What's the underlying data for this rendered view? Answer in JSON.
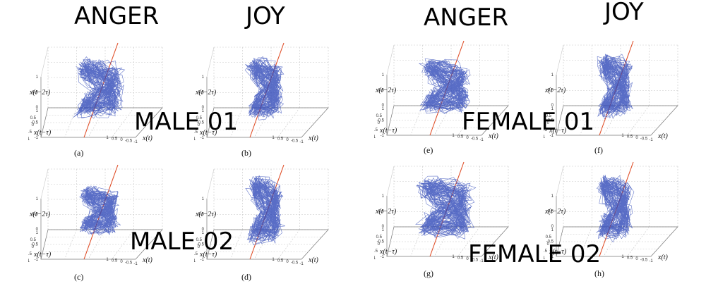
{
  "headers": {
    "anger_left": "ANGER",
    "joy_left": "JOY",
    "anger_right": "ANGER",
    "joy_right": "JOY"
  },
  "speaker_labels": {
    "male01": "MALE 01",
    "male02": "MALE 02",
    "female01": "FEMALE 01",
    "female02": "FEMALE 02"
  },
  "axis_labels": {
    "z": "x(t−2τ)",
    "y": "x(t−τ)",
    "x": "x(t)"
  },
  "z_ticks": [
    "1",
    "0.5",
    "0",
    "-0.5",
    "-1"
  ],
  "floor_ticks": [
    "1",
    "0.5",
    "0",
    "-0.5",
    "-1"
  ],
  "colors": {
    "trajectory": "#2f48b8",
    "diagonal": "#e0502a",
    "grid": "#c8c8c8",
    "axis": "#777777"
  },
  "chart_data": [
    {
      "type": "scatter",
      "subtitle": "(a)",
      "emotion": "ANGER",
      "speaker": "MALE 01",
      "spread": [
        0.42,
        0.38,
        0.75
      ],
      "z_ticks": [
        1,
        0.5,
        0,
        -0.5,
        -1
      ],
      "zlim": [
        -1,
        1
      ]
    },
    {
      "type": "scatter",
      "subtitle": "(b)",
      "emotion": "JOY",
      "speaker": "MALE 01",
      "spread": [
        0.3,
        0.3,
        0.8
      ],
      "z_ticks": [
        1,
        0.5,
        0,
        -0.5,
        -1
      ],
      "zlim": [
        -1,
        1
      ]
    },
    {
      "type": "scatter",
      "subtitle": "(c)",
      "emotion": "ANGER",
      "speaker": "MALE 02",
      "spread": [
        0.35,
        0.3,
        0.6
      ],
      "z_ticks": [
        1,
        0.5,
        0,
        -0.5,
        -1
      ],
      "zlim": [
        -1,
        1
      ]
    },
    {
      "type": "scatter",
      "subtitle": "(d)",
      "emotion": "JOY",
      "speaker": "MALE 02",
      "spread": [
        0.3,
        0.25,
        0.9
      ],
      "z_ticks": [
        1,
        0.5,
        0,
        -0.5,
        -1
      ],
      "zlim": [
        -1,
        1
      ]
    },
    {
      "type": "scatter",
      "subtitle": "(e)",
      "emotion": "ANGER",
      "speaker": "FEMALE 01",
      "spread": [
        0.45,
        0.3,
        0.7
      ],
      "z_ticks": [
        1,
        0.5,
        0,
        -0.5,
        -1
      ],
      "zlim": [
        -1,
        1
      ]
    },
    {
      "type": "scatter",
      "subtitle": "(f)",
      "emotion": "JOY",
      "speaker": "FEMALE 01",
      "spread": [
        0.3,
        0.28,
        0.85
      ],
      "z_ticks": [
        1,
        0.5,
        0,
        -0.5,
        -1
      ],
      "zlim": [
        -1,
        1
      ]
    },
    {
      "type": "scatter",
      "subtitle": "(g)",
      "emotion": "ANGER",
      "speaker": "FEMALE 02",
      "spread": [
        0.5,
        0.35,
        0.8
      ],
      "z_ticks": [
        1,
        0.5,
        0,
        -0.5,
        -1
      ],
      "zlim": [
        -1,
        1
      ]
    },
    {
      "type": "scatter",
      "subtitle": "(h)",
      "emotion": "JOY",
      "speaker": "FEMALE 02",
      "spread": [
        0.3,
        0.28,
        0.85
      ],
      "z_ticks": [
        1,
        0.5,
        0,
        -0.5,
        -1
      ],
      "zlim": [
        -1,
        1
      ]
    }
  ]
}
